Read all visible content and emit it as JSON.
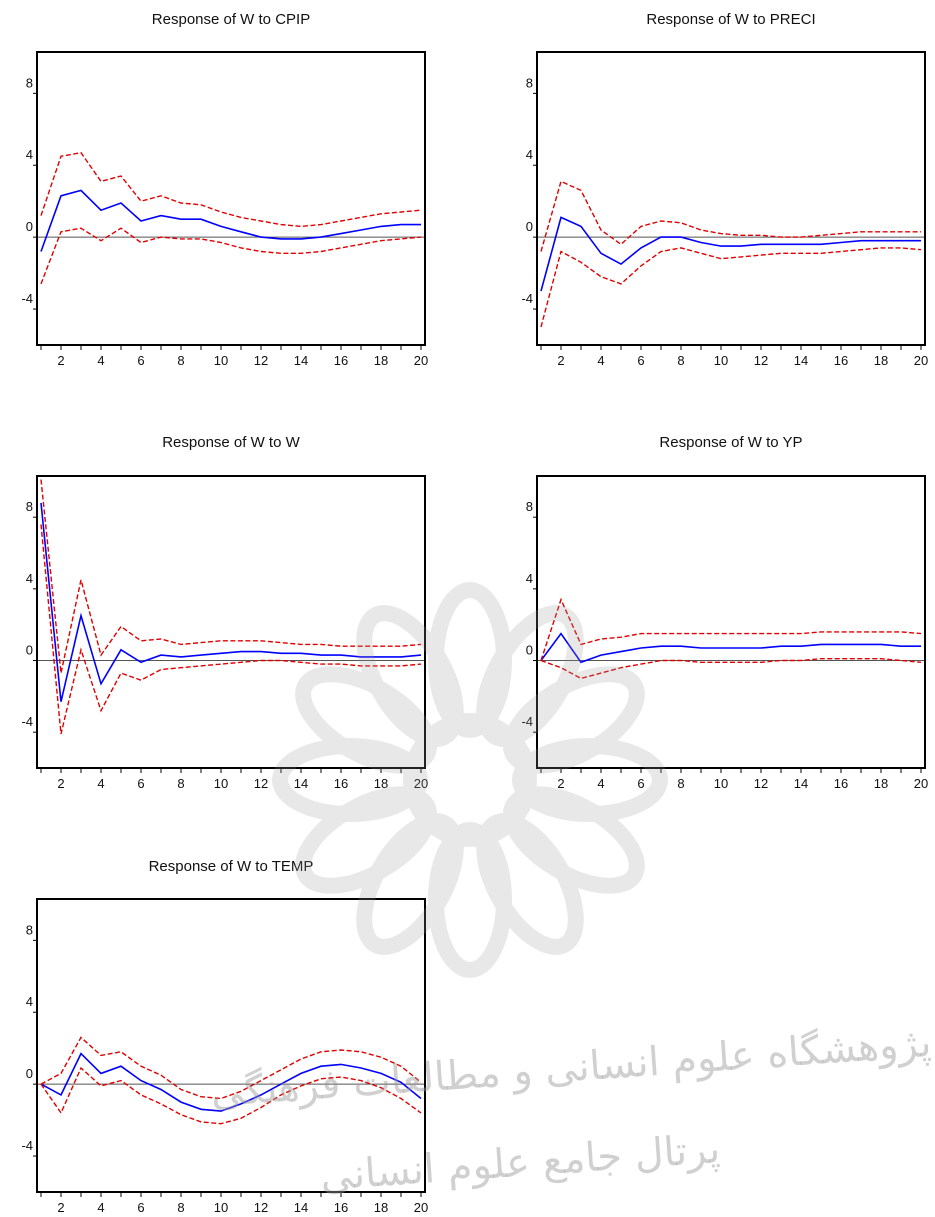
{
  "colors": {
    "response": "#0000ff",
    "band": "#e00000",
    "zero_line": "#555555",
    "frame": "#000000",
    "watermark": "#9a9a9a"
  },
  "watermark": {
    "line1": "پژوهشگاه علوم انسانی و مطالعات فرهنگی",
    "line2": "پرتال جامع علوم انسانی"
  },
  "chart_data": [
    {
      "type": "line",
      "title": "Response of W  to CPIP",
      "x": [
        1,
        2,
        3,
        4,
        5,
        6,
        7,
        8,
        9,
        10,
        11,
        12,
        13,
        14,
        15,
        16,
        17,
        18,
        19,
        20
      ],
      "xticks": [
        2,
        4,
        6,
        8,
        10,
        12,
        14,
        16,
        18,
        20
      ],
      "yticks": [
        -4,
        0,
        4,
        8
      ],
      "ylim": [
        -6,
        10.3
      ],
      "xlim": [
        0.8,
        20.2
      ],
      "series": [
        {
          "role": "response",
          "values": [
            -0.8,
            2.3,
            2.6,
            1.5,
            1.9,
            0.9,
            1.2,
            1.0,
            1.0,
            0.6,
            0.3,
            0.0,
            -0.1,
            -0.1,
            0.0,
            0.2,
            0.4,
            0.6,
            0.7,
            0.7
          ]
        },
        {
          "role": "upper",
          "values": [
            1.2,
            4.5,
            4.7,
            3.1,
            3.4,
            2.0,
            2.3,
            1.9,
            1.8,
            1.4,
            1.1,
            0.9,
            0.7,
            0.6,
            0.7,
            0.9,
            1.1,
            1.3,
            1.4,
            1.5
          ]
        },
        {
          "role": "lower",
          "values": [
            -2.6,
            0.3,
            0.5,
            -0.2,
            0.5,
            -0.3,
            0.0,
            -0.1,
            -0.1,
            -0.3,
            -0.6,
            -0.8,
            -0.9,
            -0.9,
            -0.8,
            -0.6,
            -0.4,
            -0.2,
            -0.1,
            0.0
          ]
        }
      ]
    },
    {
      "type": "line",
      "title": "Response of W  to PRECI",
      "x": [
        1,
        2,
        3,
        4,
        5,
        6,
        7,
        8,
        9,
        10,
        11,
        12,
        13,
        14,
        15,
        16,
        17,
        18,
        19,
        20
      ],
      "xticks": [
        2,
        4,
        6,
        8,
        10,
        12,
        14,
        16,
        18,
        20
      ],
      "yticks": [
        -4,
        0,
        4,
        8
      ],
      "ylim": [
        -6,
        10.3
      ],
      "xlim": [
        0.8,
        20.2
      ],
      "series": [
        {
          "role": "response",
          "values": [
            -3.0,
            1.1,
            0.6,
            -0.9,
            -1.5,
            -0.6,
            0.0,
            0.0,
            -0.3,
            -0.5,
            -0.5,
            -0.4,
            -0.4,
            -0.4,
            -0.4,
            -0.3,
            -0.2,
            -0.2,
            -0.2,
            -0.2
          ]
        },
        {
          "role": "upper",
          "values": [
            -0.8,
            3.1,
            2.6,
            0.4,
            -0.4,
            0.6,
            0.9,
            0.8,
            0.4,
            0.2,
            0.1,
            0.1,
            0.0,
            0.0,
            0.1,
            0.2,
            0.3,
            0.3,
            0.3,
            0.3
          ]
        },
        {
          "role": "lower",
          "values": [
            -5.0,
            -0.8,
            -1.4,
            -2.2,
            -2.6,
            -1.6,
            -0.8,
            -0.6,
            -0.9,
            -1.2,
            -1.1,
            -1.0,
            -0.9,
            -0.9,
            -0.9,
            -0.8,
            -0.7,
            -0.6,
            -0.6,
            -0.7
          ]
        }
      ]
    },
    {
      "type": "line",
      "title": "Response of W  to W",
      "x": [
        1,
        2,
        3,
        4,
        5,
        6,
        7,
        8,
        9,
        10,
        11,
        12,
        13,
        14,
        15,
        16,
        17,
        18,
        19,
        20
      ],
      "xticks": [
        2,
        4,
        6,
        8,
        10,
        12,
        14,
        16,
        18,
        20
      ],
      "yticks": [
        -4,
        0,
        4,
        8
      ],
      "ylim": [
        -6,
        10.3
      ],
      "xlim": [
        0.8,
        20.2
      ],
      "series": [
        {
          "role": "response",
          "values": [
            8.8,
            -2.3,
            2.5,
            -1.3,
            0.6,
            -0.1,
            0.3,
            0.2,
            0.3,
            0.4,
            0.5,
            0.5,
            0.4,
            0.4,
            0.3,
            0.3,
            0.2,
            0.2,
            0.2,
            0.3
          ]
        },
        {
          "role": "upper",
          "values": [
            10.1,
            -0.7,
            4.5,
            0.3,
            1.9,
            1.1,
            1.2,
            0.9,
            1.0,
            1.1,
            1.1,
            1.1,
            1.0,
            0.9,
            0.9,
            0.8,
            0.8,
            0.8,
            0.8,
            0.9
          ]
        },
        {
          "role": "lower",
          "values": [
            7.6,
            -4.1,
            0.6,
            -2.8,
            -0.7,
            -1.1,
            -0.5,
            -0.4,
            -0.3,
            -0.2,
            -0.1,
            0.0,
            0.0,
            -0.1,
            -0.2,
            -0.2,
            -0.3,
            -0.3,
            -0.3,
            -0.2
          ]
        }
      ]
    },
    {
      "type": "line",
      "title": "Response of W  to YP",
      "x": [
        1,
        2,
        3,
        4,
        5,
        6,
        7,
        8,
        9,
        10,
        11,
        12,
        13,
        14,
        15,
        16,
        17,
        18,
        19,
        20
      ],
      "xticks": [
        2,
        4,
        6,
        8,
        10,
        12,
        14,
        16,
        18,
        20
      ],
      "yticks": [
        -4,
        0,
        4,
        8
      ],
      "ylim": [
        -6,
        10.3
      ],
      "xlim": [
        0.8,
        20.2
      ],
      "series": [
        {
          "role": "response",
          "values": [
            0.0,
            1.5,
            -0.1,
            0.3,
            0.5,
            0.7,
            0.8,
            0.8,
            0.7,
            0.7,
            0.7,
            0.7,
            0.8,
            0.8,
            0.9,
            0.9,
            0.9,
            0.9,
            0.8,
            0.8
          ]
        },
        {
          "role": "upper",
          "values": [
            0.0,
            3.4,
            0.9,
            1.2,
            1.3,
            1.5,
            1.5,
            1.5,
            1.5,
            1.5,
            1.5,
            1.5,
            1.5,
            1.5,
            1.6,
            1.6,
            1.6,
            1.6,
            1.6,
            1.5
          ]
        },
        {
          "role": "lower",
          "values": [
            0.0,
            -0.4,
            -1.0,
            -0.7,
            -0.4,
            -0.2,
            0.0,
            0.0,
            -0.1,
            -0.1,
            -0.1,
            -0.1,
            0.0,
            0.0,
            0.1,
            0.1,
            0.1,
            0.1,
            0.0,
            -0.1
          ]
        }
      ]
    },
    {
      "type": "line",
      "title": "Response of W  to TEMP",
      "x": [
        1,
        2,
        3,
        4,
        5,
        6,
        7,
        8,
        9,
        10,
        11,
        12,
        13,
        14,
        15,
        16,
        17,
        18,
        19,
        20
      ],
      "xticks": [
        2,
        4,
        6,
        8,
        10,
        12,
        14,
        16,
        18,
        20
      ],
      "yticks": [
        -4,
        0,
        4,
        8
      ],
      "ylim": [
        -6,
        10.3
      ],
      "xlim": [
        0.8,
        20.2
      ],
      "series": [
        {
          "role": "response",
          "values": [
            0.0,
            -0.6,
            1.7,
            0.6,
            1.0,
            0.2,
            -0.3,
            -1.0,
            -1.4,
            -1.5,
            -1.1,
            -0.6,
            0.0,
            0.6,
            1.0,
            1.1,
            0.9,
            0.6,
            0.1,
            -0.8
          ]
        },
        {
          "role": "upper",
          "values": [
            0.0,
            0.6,
            2.6,
            1.6,
            1.8,
            1.0,
            0.5,
            -0.3,
            -0.7,
            -0.8,
            -0.4,
            0.2,
            0.8,
            1.4,
            1.8,
            1.9,
            1.8,
            1.5,
            1.0,
            0.1
          ]
        },
        {
          "role": "lower",
          "values": [
            0.0,
            -1.6,
            0.9,
            -0.1,
            0.2,
            -0.6,
            -1.1,
            -1.7,
            -2.1,
            -2.2,
            -1.9,
            -1.3,
            -0.6,
            -0.1,
            0.3,
            0.4,
            0.2,
            -0.2,
            -0.8,
            -1.6
          ]
        }
      ]
    }
  ]
}
